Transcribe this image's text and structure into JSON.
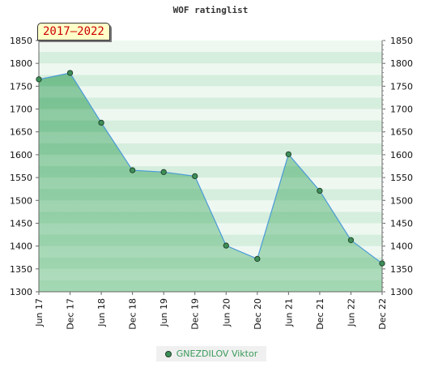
{
  "chart_data": {
    "type": "area",
    "title": "WOF ratinglist",
    "period_label": "2017–2022",
    "x_categories": [
      "Jun 17",
      "Dec 17",
      "Jun 18",
      "Dec 18",
      "Jun 19",
      "Dec 19",
      "Jun 20",
      "Dec 20",
      "Jun 21",
      "Dec 21",
      "Jun 22",
      "Dec 22"
    ],
    "ylim": [
      1300,
      1850
    ],
    "yticks": [
      1300,
      1350,
      1400,
      1450,
      1500,
      1550,
      1600,
      1650,
      1700,
      1750,
      1800,
      1850
    ],
    "series": [
      {
        "name": "GNEZDILOV Viktor",
        "values": [
          1765,
          1779,
          1670,
          1566,
          1562,
          1553,
          1401,
          1372,
          1601,
          1521,
          1413,
          1362
        ]
      }
    ],
    "legend_position": "bottom",
    "grid": true,
    "y_axis_both_sides": true
  },
  "colors": {
    "fill_dark": "#7cc495",
    "fill_light": "#a9dcb9",
    "band_a": "#d6eedd",
    "band_b": "#eef8f1",
    "line": "#4a9ad8",
    "marker": "#3e8e58"
  }
}
